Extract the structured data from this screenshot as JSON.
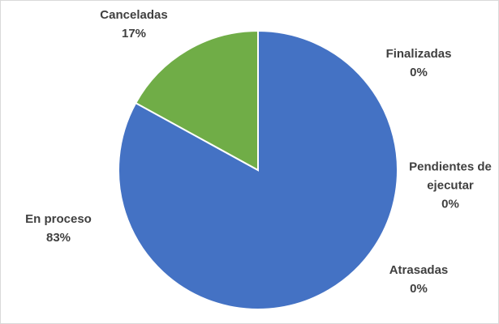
{
  "chart_data": {
    "type": "pie",
    "categories": [
      "Finalizadas",
      "Pendientes de ejecutar",
      "Atrasadas",
      "En proceso",
      "Canceladas"
    ],
    "values": [
      0,
      0,
      0,
      83,
      17
    ],
    "value_labels": [
      "0%",
      "0%",
      "0%",
      "83%",
      "17%"
    ],
    "colors": [
      "#ed7d31",
      "#a5a5a5",
      "#ffc000",
      "#4472c4",
      "#70ad47"
    ]
  }
}
